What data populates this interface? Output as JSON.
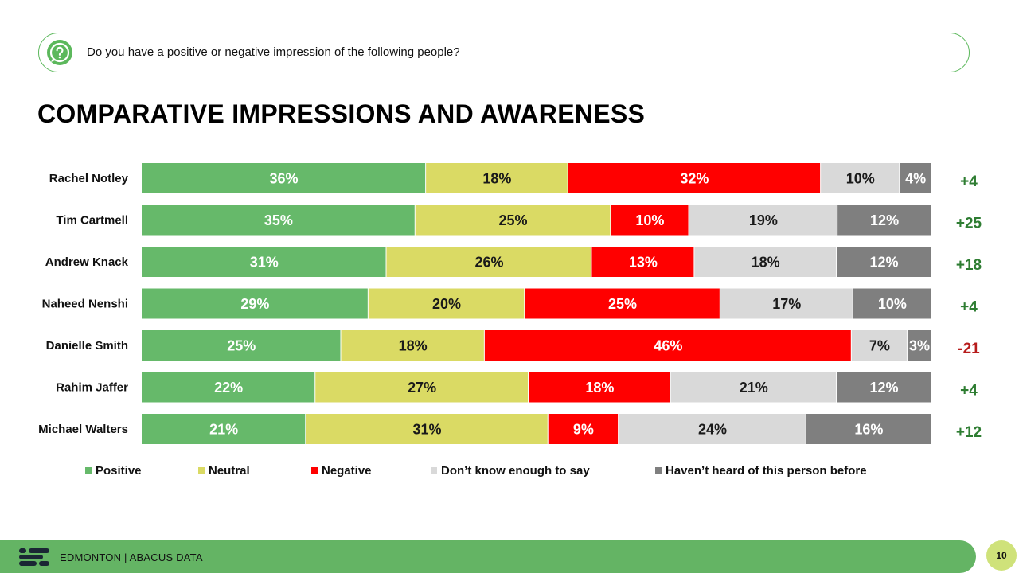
{
  "question": {
    "text": "Do you have a positive or negative impression of the following people?",
    "icon": "question-circle-icon"
  },
  "title": "COMPARATIVE IMPRESSIONS AND AWARENESS",
  "footer": {
    "label": "EDMONTON | ABACUS DATA",
    "page_number": "10"
  },
  "colors": {
    "positive": "#66b96a",
    "neutral": "#dada64",
    "negative": "#ff0000",
    "dont_know": "#d9d9d9",
    "havent_heard": "#7f7f7f",
    "net_positive": "#2e7d32",
    "net_negative": "#b71c1c"
  },
  "chart_data": {
    "type": "bar",
    "orientation": "horizontal-stacked-100",
    "categories": [
      "Rachel Notley",
      "Tim Cartmell",
      "Andrew Knack",
      "Naheed Nenshi",
      "Danielle Smith",
      "Rahim Jaffer",
      "Michael Walters"
    ],
    "series": [
      {
        "name": "Positive",
        "values": [
          36,
          35,
          31,
          29,
          25,
          22,
          21
        ],
        "labels": [
          "36%",
          "35%",
          "31%",
          "29%",
          "25%",
          "22%",
          "21%"
        ]
      },
      {
        "name": "Neutral",
        "values": [
          18,
          25,
          26,
          20,
          18,
          27,
          31
        ],
        "labels": [
          "18%",
          "25%",
          "26%",
          "20%",
          "18%",
          "27%",
          "31%"
        ]
      },
      {
        "name": "Negative",
        "values": [
          32,
          10,
          13,
          25,
          46,
          18,
          9
        ],
        "labels": [
          "32%",
          "10%",
          "13%",
          "25%",
          "46%",
          "18%",
          "9%"
        ]
      },
      {
        "name": "Don’t know enough to say",
        "values": [
          10,
          19,
          18,
          17,
          7,
          21,
          24
        ],
        "labels": [
          "10%",
          "19%",
          "18%",
          "17%",
          "7%",
          "21%",
          "24%"
        ]
      },
      {
        "name": "Haven’t heard of this person before",
        "values": [
          4,
          12,
          12,
          10,
          3,
          12,
          16
        ],
        "labels": [
          "4%",
          "12%",
          "12%",
          "10%",
          "3%",
          "12%",
          "16%"
        ]
      }
    ],
    "net": [
      "+4",
      "+25",
      "+18",
      "+4",
      "-21",
      "+4",
      "+12"
    ],
    "xlim": [
      0,
      100
    ],
    "legend_position": "bottom",
    "grid": false
  }
}
